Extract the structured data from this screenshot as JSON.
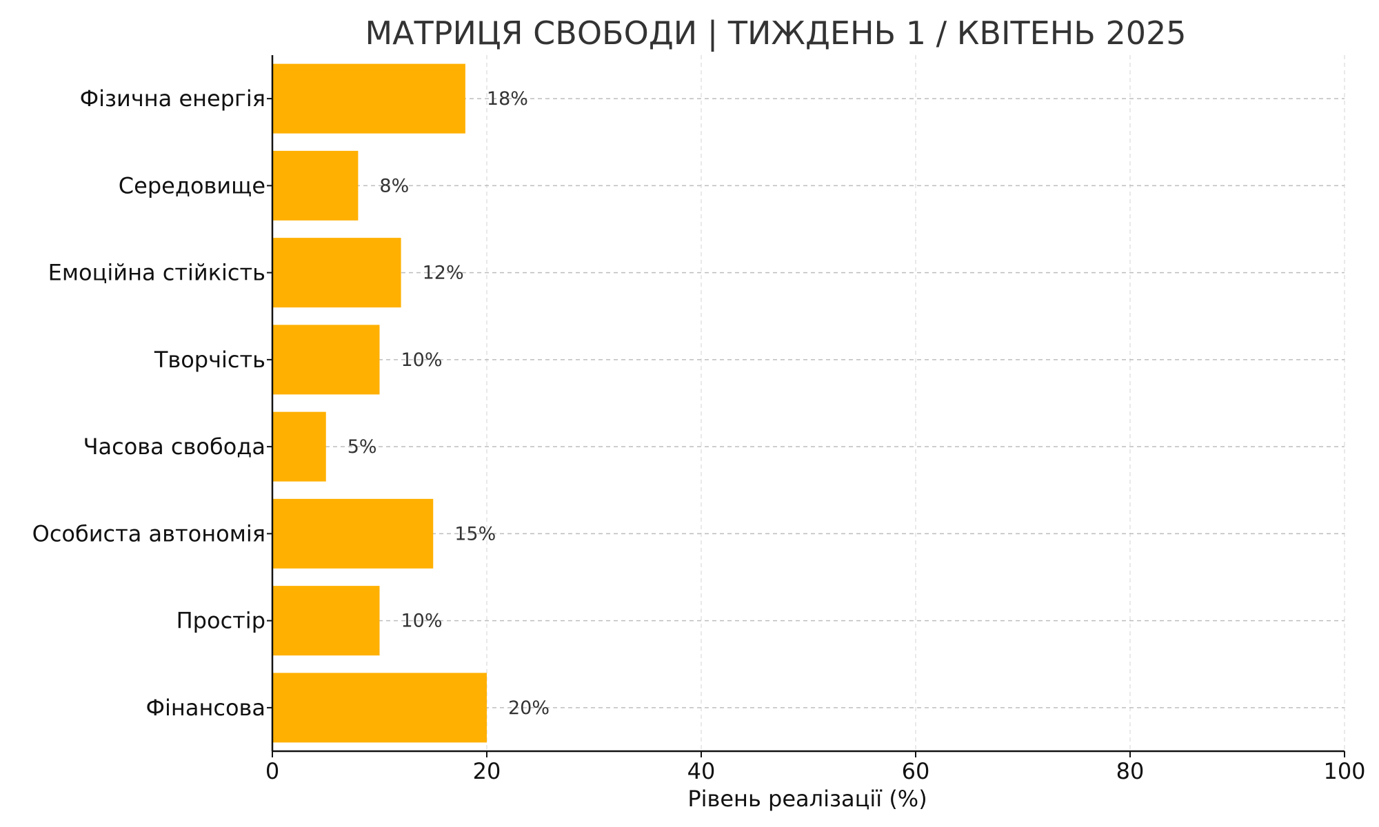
{
  "chart_data": {
    "type": "bar",
    "orientation": "horizontal",
    "title": "МАТРИЦЯ СВОБОДИ | ТИЖДЕНЬ 1 / КВІТЕНЬ 2025",
    "xlabel": "Рівень реалізації (%)",
    "ylabel": "",
    "xlim": [
      0,
      100
    ],
    "xticks": [
      0,
      20,
      40,
      60,
      80,
      100
    ],
    "categories": [
      "Фізична енергія",
      "Середовище",
      "Емоційна стійкість",
      "Творчість",
      "Часова свобода",
      "Особиста автономія",
      "Простір",
      "Фінансова"
    ],
    "values": [
      18,
      8,
      12,
      10,
      5,
      15,
      10,
      20
    ],
    "value_labels": [
      "18%",
      "8%",
      "12%",
      "10%",
      "5%",
      "15%",
      "10%",
      "20%"
    ],
    "bar_color": "#FFB000",
    "grid": true,
    "grid_style": "dashed"
  }
}
